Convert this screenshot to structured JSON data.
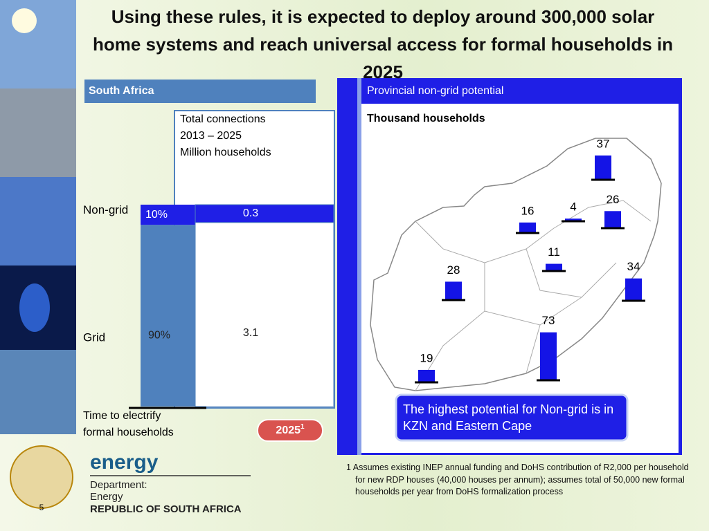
{
  "title": "Using these rules, it is expected to deploy around 300,000 solar home systems and reach universal access for formal households in 2025",
  "chart_data": [
    {
      "type": "stacked_bar",
      "panel_title": "South Africa",
      "title": [
        "Total connections",
        "2013 – 2025",
        "Million households"
      ],
      "series": [
        {
          "name": "Non-grid",
          "color": [
            "#1f1fe6",
            "#1f1fe6"
          ],
          "values": [
            10,
            0.3
          ],
          "value_labels": [
            "10%",
            "0.3"
          ]
        },
        {
          "name": "Grid",
          "color": [
            "#4f81bd",
            "#ffffff"
          ],
          "values": [
            90,
            3.1
          ],
          "value_labels": [
            "90%",
            "3.1"
          ]
        }
      ],
      "xlabel": "Time to electrify formal households",
      "badge": "2025",
      "badge_note": "1"
    },
    {
      "type": "map_bar",
      "title": "Provincial non-grid potential",
      "subtitle": "Thousand households",
      "values": [
        37,
        26,
        4,
        16,
        34,
        11,
        28,
        73,
        19
      ],
      "color": "#1414e6",
      "callout": "The highest potential for Non-grid is in KZN and Eastern Cape"
    }
  ],
  "footnote": {
    "mark": "1",
    "text": "Assumes existing INEP annual funding and DoHS contribution of R2,000 per household for new RDP houses (40,000 houses per annum); assumes total of 50,000 new formal households per year from DoHS formalization process"
  },
  "logo": {
    "name": "energy",
    "lines": [
      "Department:",
      "Energy",
      "REPUBLIC OF SOUTH AFRICA"
    ]
  },
  "slide_number": "5"
}
